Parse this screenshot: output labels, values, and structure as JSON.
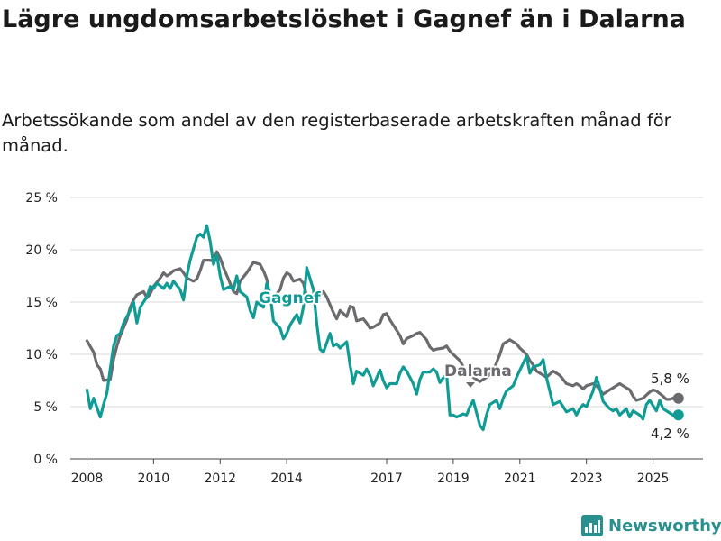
{
  "chart_data": {
    "type": "line",
    "title": "Lägre ungdomsarbetslöshet i Gagnef än i Dalarna",
    "subtitle": "Arbetssökande som andel av den registerbaserade arbetskraften månad för månad.",
    "ylim": [
      0,
      25
    ],
    "y_ticks": [
      0,
      5,
      10,
      15,
      20,
      25
    ],
    "y_tick_labels": [
      "0 %",
      "5 %",
      "10 %",
      "15 %",
      "20 %",
      "25 %"
    ],
    "x_ticks": [
      2008,
      2010,
      2012,
      2014,
      2017,
      2019,
      2021,
      2023,
      2025
    ],
    "x_tick_labels": [
      "2008",
      "2010",
      "2012",
      "2014",
      "2017",
      "2019",
      "2021",
      "2023",
      "2025"
    ],
    "grid": "horizontal",
    "legend": "direct labels on lines",
    "series": [
      {
        "name": "Dalarna",
        "color": "#6b6b6f",
        "end_label": "5,8 %",
        "points": [
          [
            2008.0,
            11.3
          ],
          [
            2008.2,
            10.2
          ],
          [
            2008.3,
            9.0
          ],
          [
            2008.4,
            8.6
          ],
          [
            2008.5,
            7.5
          ],
          [
            2008.7,
            7.6
          ],
          [
            2008.8,
            9.5
          ],
          [
            2008.9,
            10.8
          ],
          [
            2009.0,
            11.8
          ],
          [
            2009.2,
            13.3
          ],
          [
            2009.3,
            14.5
          ],
          [
            2009.4,
            15.2
          ],
          [
            2009.5,
            15.7
          ],
          [
            2009.7,
            16.0
          ],
          [
            2009.8,
            15.4
          ],
          [
            2009.9,
            15.8
          ],
          [
            2010.0,
            16.5
          ],
          [
            2010.2,
            17.3
          ],
          [
            2010.3,
            17.8
          ],
          [
            2010.4,
            17.5
          ],
          [
            2010.5,
            17.7
          ],
          [
            2010.6,
            18.0
          ],
          [
            2010.8,
            18.2
          ],
          [
            2010.9,
            17.8
          ],
          [
            2011.0,
            17.3
          ],
          [
            2011.2,
            17.0
          ],
          [
            2011.3,
            17.2
          ],
          [
            2011.4,
            18.0
          ],
          [
            2011.5,
            19.0
          ],
          [
            2011.7,
            19.0
          ],
          [
            2011.8,
            18.9
          ],
          [
            2011.9,
            19.8
          ],
          [
            2012.0,
            19.2
          ],
          [
            2012.1,
            18.3
          ],
          [
            2012.3,
            16.8
          ],
          [
            2012.4,
            16.0
          ],
          [
            2012.5,
            15.8
          ],
          [
            2012.6,
            17.0
          ],
          [
            2012.8,
            17.8
          ],
          [
            2012.9,
            18.3
          ],
          [
            2013.0,
            18.8
          ],
          [
            2013.2,
            18.6
          ],
          [
            2013.3,
            18.0
          ],
          [
            2013.4,
            17.2
          ],
          [
            2013.5,
            15.4
          ],
          [
            2013.6,
            15.4
          ],
          [
            2013.8,
            16.2
          ],
          [
            2013.9,
            17.3
          ],
          [
            2014.0,
            17.8
          ],
          [
            2014.1,
            17.6
          ],
          [
            2014.2,
            17.0
          ],
          [
            2014.4,
            17.2
          ],
          [
            2014.5,
            16.8
          ],
          [
            2014.6,
            15.6
          ],
          [
            2014.8,
            15.0
          ],
          [
            2014.9,
            14.9
          ],
          [
            2015.0,
            15.6
          ],
          [
            2015.1,
            16.0
          ],
          [
            2015.2,
            15.5
          ],
          [
            2015.4,
            14.0
          ],
          [
            2015.5,
            13.4
          ],
          [
            2015.6,
            14.2
          ],
          [
            2015.8,
            13.6
          ],
          [
            2015.9,
            14.6
          ],
          [
            2016.0,
            14.5
          ],
          [
            2016.1,
            13.2
          ],
          [
            2016.3,
            13.4
          ],
          [
            2016.4,
            13.0
          ],
          [
            2016.5,
            12.5
          ],
          [
            2016.6,
            12.6
          ],
          [
            2016.8,
            13.0
          ],
          [
            2016.9,
            13.8
          ],
          [
            2017.0,
            13.9
          ],
          [
            2017.1,
            13.3
          ],
          [
            2017.3,
            12.3
          ],
          [
            2017.4,
            11.8
          ],
          [
            2017.5,
            11.0
          ],
          [
            2017.6,
            11.5
          ],
          [
            2017.8,
            11.8
          ],
          [
            2017.9,
            12.0
          ],
          [
            2018.0,
            12.1
          ],
          [
            2018.2,
            11.4
          ],
          [
            2018.3,
            10.7
          ],
          [
            2018.4,
            10.4
          ],
          [
            2018.5,
            10.5
          ],
          [
            2018.7,
            10.6
          ],
          [
            2018.8,
            10.8
          ],
          [
            2018.9,
            10.3
          ],
          [
            2019.0,
            10.0
          ],
          [
            2019.2,
            9.4
          ],
          [
            2019.3,
            8.8
          ],
          [
            2019.4,
            8.3
          ],
          [
            2019.6,
            7.8
          ],
          [
            2019.7,
            7.6
          ],
          [
            2019.8,
            7.4
          ],
          [
            2019.9,
            7.6
          ],
          [
            2020.0,
            7.8
          ],
          [
            2020.2,
            8.4
          ],
          [
            2020.3,
            9.2
          ],
          [
            2020.4,
            10.0
          ],
          [
            2020.5,
            11.0
          ],
          [
            2020.7,
            11.4
          ],
          [
            2020.8,
            11.2
          ],
          [
            2020.9,
            11.0
          ],
          [
            2021.0,
            10.6
          ],
          [
            2021.2,
            10.0
          ],
          [
            2021.3,
            9.4
          ],
          [
            2021.4,
            9.0
          ],
          [
            2021.5,
            8.4
          ],
          [
            2021.7,
            8.0
          ],
          [
            2021.8,
            7.8
          ],
          [
            2021.9,
            8.1
          ],
          [
            2022.0,
            8.4
          ],
          [
            2022.2,
            8.0
          ],
          [
            2022.3,
            7.6
          ],
          [
            2022.4,
            7.2
          ],
          [
            2022.6,
            7.0
          ],
          [
            2022.7,
            7.2
          ],
          [
            2022.8,
            7.0
          ],
          [
            2022.9,
            6.7
          ],
          [
            2023.0,
            7.0
          ],
          [
            2023.2,
            7.2
          ],
          [
            2023.3,
            7.0
          ],
          [
            2023.4,
            6.6
          ],
          [
            2023.5,
            6.2
          ],
          [
            2023.7,
            6.6
          ],
          [
            2023.8,
            6.8
          ],
          [
            2023.9,
            7.0
          ],
          [
            2024.0,
            7.2
          ],
          [
            2024.1,
            7.0
          ],
          [
            2024.3,
            6.6
          ],
          [
            2024.4,
            6.0
          ],
          [
            2024.5,
            5.6
          ],
          [
            2024.7,
            5.8
          ],
          [
            2024.8,
            6.1
          ],
          [
            2024.9,
            6.4
          ],
          [
            2025.0,
            6.6
          ],
          [
            2025.1,
            6.5
          ],
          [
            2025.3,
            6.0
          ],
          [
            2025.4,
            5.7
          ],
          [
            2025.5,
            5.7
          ],
          [
            2025.6,
            5.8
          ]
        ]
      },
      {
        "name": "Gagnef",
        "color": "#109c94",
        "end_label": "4,2 %",
        "points": [
          [
            2008.0,
            6.6
          ],
          [
            2008.1,
            4.8
          ],
          [
            2008.2,
            5.8
          ],
          [
            2008.4,
            4.0
          ],
          [
            2008.5,
            5.2
          ],
          [
            2008.6,
            6.3
          ],
          [
            2008.7,
            8.6
          ],
          [
            2008.8,
            10.8
          ],
          [
            2008.9,
            11.8
          ],
          [
            2009.0,
            12.0
          ],
          [
            2009.1,
            13.0
          ],
          [
            2009.3,
            14.2
          ],
          [
            2009.4,
            15.0
          ],
          [
            2009.5,
            13.0
          ],
          [
            2009.6,
            14.5
          ],
          [
            2009.8,
            15.5
          ],
          [
            2009.9,
            16.5
          ],
          [
            2010.0,
            16.3
          ],
          [
            2010.1,
            16.8
          ],
          [
            2010.3,
            16.3
          ],
          [
            2010.4,
            16.8
          ],
          [
            2010.5,
            16.3
          ],
          [
            2010.6,
            17.0
          ],
          [
            2010.8,
            16.2
          ],
          [
            2010.9,
            15.2
          ],
          [
            2011.0,
            17.5
          ],
          [
            2011.1,
            19.0
          ],
          [
            2011.3,
            21.2
          ],
          [
            2011.4,
            21.5
          ],
          [
            2011.5,
            21.2
          ],
          [
            2011.6,
            22.3
          ],
          [
            2011.7,
            20.8
          ],
          [
            2011.8,
            18.6
          ],
          [
            2011.9,
            19.5
          ],
          [
            2012.0,
            17.5
          ],
          [
            2012.1,
            16.2
          ],
          [
            2012.3,
            16.5
          ],
          [
            2012.4,
            16.2
          ],
          [
            2012.5,
            17.5
          ],
          [
            2012.6,
            16.0
          ],
          [
            2012.8,
            15.5
          ],
          [
            2012.9,
            14.2
          ],
          [
            2013.0,
            13.5
          ],
          [
            2013.1,
            15.0
          ],
          [
            2013.3,
            14.5
          ],
          [
            2013.4,
            16.8
          ],
          [
            2013.5,
            15.8
          ],
          [
            2013.6,
            13.2
          ],
          [
            2013.8,
            12.5
          ],
          [
            2013.9,
            11.5
          ],
          [
            2014.0,
            12.0
          ],
          [
            2014.1,
            12.8
          ],
          [
            2014.3,
            13.8
          ],
          [
            2014.4,
            13.0
          ],
          [
            2014.5,
            14.5
          ],
          [
            2014.6,
            18.3
          ],
          [
            2014.8,
            16.2
          ],
          [
            2014.9,
            13.0
          ],
          [
            2015.0,
            10.5
          ],
          [
            2015.1,
            10.2
          ],
          [
            2015.3,
            12.0
          ],
          [
            2015.4,
            10.8
          ],
          [
            2015.5,
            11.0
          ],
          [
            2015.6,
            10.6
          ],
          [
            2015.8,
            11.2
          ],
          [
            2015.9,
            9.0
          ],
          [
            2016.0,
            7.2
          ],
          [
            2016.1,
            8.4
          ],
          [
            2016.3,
            8.0
          ],
          [
            2016.4,
            8.6
          ],
          [
            2016.5,
            8.0
          ],
          [
            2016.6,
            7.0
          ],
          [
            2016.8,
            8.5
          ],
          [
            2016.9,
            7.5
          ],
          [
            2017.0,
            6.8
          ],
          [
            2017.1,
            7.2
          ],
          [
            2017.3,
            7.2
          ],
          [
            2017.4,
            8.2
          ],
          [
            2017.5,
            8.8
          ],
          [
            2017.6,
            8.4
          ],
          [
            2017.8,
            7.2
          ],
          [
            2017.9,
            6.2
          ],
          [
            2018.0,
            7.6
          ],
          [
            2018.1,
            8.3
          ],
          [
            2018.3,
            8.3
          ],
          [
            2018.4,
            8.6
          ],
          [
            2018.5,
            8.3
          ],
          [
            2018.6,
            7.3
          ],
          [
            2018.8,
            8.2
          ],
          [
            2018.9,
            4.2
          ],
          [
            2019.0,
            4.2
          ],
          [
            2019.1,
            4.0
          ],
          [
            2019.3,
            4.3
          ],
          [
            2019.4,
            4.2
          ],
          [
            2019.5,
            5.0
          ],
          [
            2019.6,
            5.6
          ],
          [
            2019.8,
            3.2
          ],
          [
            2019.9,
            2.8
          ],
          [
            2020.0,
            4.2
          ],
          [
            2020.1,
            5.2
          ],
          [
            2020.3,
            5.6
          ],
          [
            2020.4,
            4.8
          ],
          [
            2020.5,
            5.8
          ],
          [
            2020.6,
            6.5
          ],
          [
            2020.8,
            7.0
          ],
          [
            2020.9,
            7.8
          ],
          [
            2021.0,
            8.5
          ],
          [
            2021.2,
            9.8
          ],
          [
            2021.3,
            8.2
          ],
          [
            2021.4,
            8.8
          ],
          [
            2021.6,
            9.0
          ],
          [
            2021.7,
            9.5
          ],
          [
            2021.8,
            7.8
          ],
          [
            2021.9,
            6.5
          ],
          [
            2022.0,
            5.2
          ],
          [
            2022.2,
            5.5
          ],
          [
            2022.3,
            5.0
          ],
          [
            2022.4,
            4.5
          ],
          [
            2022.6,
            4.8
          ],
          [
            2022.7,
            4.2
          ],
          [
            2022.8,
            4.8
          ],
          [
            2022.9,
            5.2
          ],
          [
            2023.0,
            5.0
          ],
          [
            2023.2,
            6.5
          ],
          [
            2023.3,
            7.8
          ],
          [
            2023.4,
            6.8
          ],
          [
            2023.5,
            5.5
          ],
          [
            2023.7,
            4.8
          ],
          [
            2023.8,
            4.6
          ],
          [
            2023.9,
            4.8
          ],
          [
            2024.0,
            4.2
          ],
          [
            2024.2,
            4.8
          ],
          [
            2024.3,
            4.0
          ],
          [
            2024.4,
            4.6
          ],
          [
            2024.6,
            4.2
          ],
          [
            2024.7,
            3.8
          ],
          [
            2024.8,
            5.2
          ],
          [
            2024.9,
            5.6
          ],
          [
            2025.1,
            4.6
          ],
          [
            2025.2,
            5.6
          ],
          [
            2025.3,
            4.8
          ],
          [
            2025.5,
            4.4
          ],
          [
            2025.6,
            4.2
          ]
        ]
      }
    ]
  },
  "branding": {
    "text": "Newsworthy",
    "icon": "bar-chart-logo-icon",
    "color": "#2a8f8f"
  }
}
